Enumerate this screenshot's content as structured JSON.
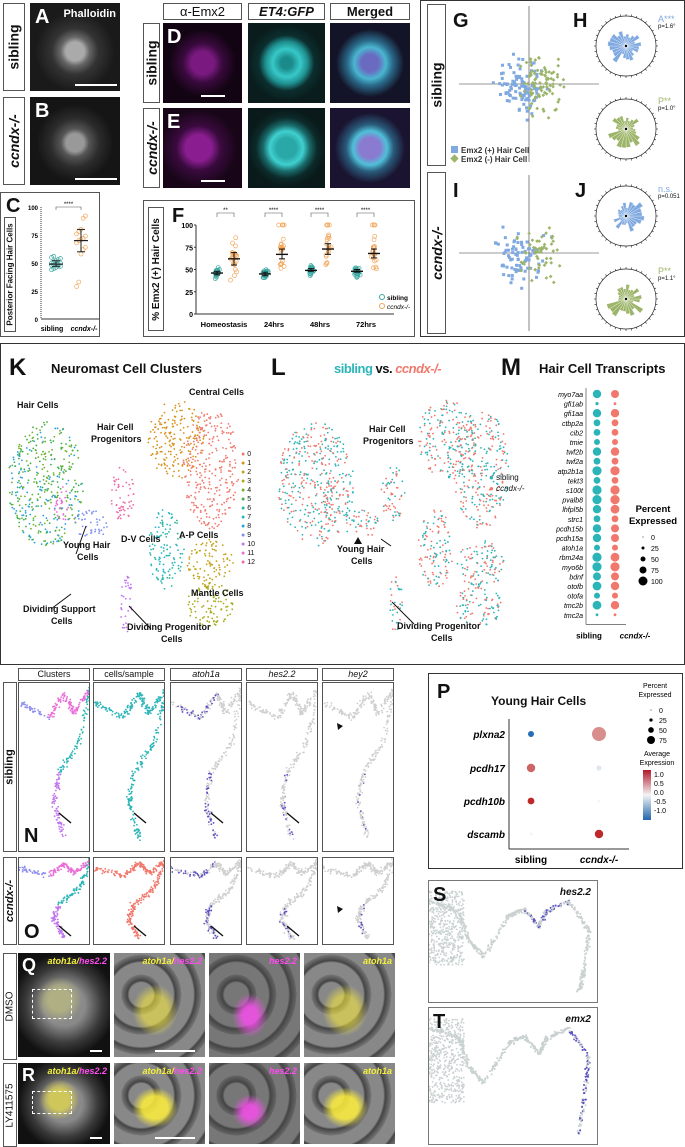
{
  "panels": {
    "A": {
      "letter": "A",
      "stain": "Phalloidin"
    },
    "B": {
      "letter": "B"
    },
    "C": {
      "letter": "C"
    },
    "D": {
      "letter": "D"
    },
    "E": {
      "letter": "E"
    },
    "F": {
      "letter": "F"
    },
    "G": {
      "letter": "G"
    },
    "H": {
      "letter": "H"
    },
    "I": {
      "letter": "I"
    },
    "J": {
      "letter": "J"
    },
    "K": {
      "letter": "K",
      "title": "Neuromast Cell Clusters"
    },
    "L": {
      "letter": "L",
      "title_sibling": "sibling",
      "title_vs": " vs. ",
      "title_mutant": "ccndx-/-"
    },
    "M": {
      "letter": "M",
      "title": "Hair Cell Transcripts"
    },
    "N": {
      "letter": "N"
    },
    "O": {
      "letter": "O"
    },
    "P": {
      "letter": "P",
      "title": "Young Hair Cells"
    },
    "Q": {
      "letter": "Q"
    },
    "R": {
      "letter": "R"
    },
    "S": {
      "letter": "S",
      "gene": "hes2.2"
    },
    "T": {
      "letter": "T",
      "gene": "emx2"
    }
  },
  "row_labels": {
    "sibling": "sibling",
    "mutant": "ccndx-/-",
    "dmso": "DMSO",
    "ly": "LY411575"
  },
  "de_headers": [
    "α-Emx2",
    "ET4:GFP",
    "Merged"
  ],
  "no_headers": [
    "Clusters",
    "cells/sample",
    "atoh1a",
    "hes2.2",
    "hey2"
  ],
  "qr_labels": {
    "merge": "atoh1a",
    "slash": "/",
    "hes": "hes2.2",
    "atoh": "atoh1a"
  },
  "gj": {
    "legend_pos": "Emx2 (+) Hair Cell",
    "legend_neg": "Emx2 (-) Hair Cell",
    "H_top_stat": "A***",
    "H_top_p": "p=1.6°",
    "H_bot_stat": "P**",
    "H_bot_p": "p=1.0°",
    "J_top_stat": "n.s.",
    "J_top_p": "p=0.051",
    "J_bot_stat": "P**",
    "J_bot_p": "p=1.1°"
  },
  "K_labels": {
    "hair_cells": "Hair Cells",
    "central_cells": "Central Cells",
    "hcp1": "Hair Cell",
    "hcp2": "Progenitors",
    "young1": "Young Hair",
    "young2": "Cells",
    "dv": "D-V Cells",
    "ap": "A-P Cells",
    "mantle": "Mantle Cells",
    "dsc1": "Dividing Support",
    "dsc2": "Cells",
    "dpc1": "Dividing Progenitor",
    "dpc2": "Cells",
    "clusters": [
      "0",
      "1",
      "2",
      "3",
      "4",
      "5",
      "6",
      "7",
      "8",
      "9",
      "10",
      "11",
      "12"
    ]
  },
  "L_legend": {
    "sibling": "sibling",
    "mutant": "ccndx-/-"
  },
  "colors": {
    "sibling": "#2bb5b8",
    "mutant": "#f0786c",
    "orange": "#f2a65a",
    "teal": "#3aa6a0",
    "emx_pos": "#7fa9e0",
    "emx_neg": "#9db56a",
    "umap_grey": "#c9d1d1",
    "umap_expr": "#5b4fc4",
    "clusters": [
      "#f07a6f",
      "#d8921d",
      "#c4a21b",
      "#a8ad1a",
      "#6fb32a",
      "#3fb04a",
      "#2fb59b",
      "#27b7c8",
      "#2aa2e0",
      "#7f8ff0",
      "#c275ef",
      "#ea6fd8",
      "#f06ca8"
    ]
  },
  "chart_data": [
    {
      "id": "C",
      "type": "scatter",
      "ylabel": "Posterior Facing Hair Cells",
      "categories": [
        "sibling",
        "ccndx-/-"
      ],
      "yticks": [
        0,
        25,
        50,
        75,
        100
      ],
      "ylim": [
        0,
        100
      ],
      "series": [
        {
          "name": "sibling",
          "mean": 49,
          "err": [
            47,
            52
          ],
          "points": [
            44,
            45,
            46,
            47,
            47,
            48,
            48,
            49,
            49,
            50,
            50,
            51,
            52,
            53,
            54,
            55,
            56
          ]
        },
        {
          "name": "ccndx-/-",
          "mean": 70,
          "err": [
            60,
            80
          ],
          "points": [
            29,
            33,
            58,
            62,
            64,
            68,
            70,
            71,
            72,
            74,
            76,
            78,
            80,
            90,
            92
          ]
        }
      ],
      "significance": "****"
    },
    {
      "id": "F",
      "type": "scatter",
      "ylabel": "% Emx2 (+) Hair Cells",
      "categories": [
        "Homeostasis",
        "24hrs",
        "48hrs",
        "72hrs"
      ],
      "yticks": [
        0,
        25,
        50,
        75,
        100
      ],
      "ylim": [
        0,
        100
      ],
      "series": [
        {
          "name": "sibling",
          "means": [
            46,
            45,
            49,
            48
          ],
          "err": [
            [
              44,
              48
            ],
            [
              43,
              47
            ],
            [
              48,
              51
            ],
            [
              47,
              50
            ]
          ]
        },
        {
          "name": "ccndx-/-",
          "means": [
            62,
            67,
            73,
            68
          ],
          "err": [
            [
              55,
              69
            ],
            [
              62,
              73
            ],
            [
              67,
              79
            ],
            [
              63,
              73
            ]
          ]
        }
      ],
      "significance": [
        "**",
        "****",
        "****",
        "****"
      ],
      "legend": "bottom-right"
    },
    {
      "id": "M",
      "type": "dot",
      "title": "Hair Cell Transcripts",
      "genes": [
        "myo7aa",
        "gfi1ab",
        "gfi1aa",
        "ctbp2a",
        "cib2",
        "tmie",
        "twf2b",
        "twf2a",
        "atp2b1a",
        "tekt3",
        "s100t",
        "pvalb8",
        "lhfpl5b",
        "strc1",
        "pcdh15b",
        "pcdh15a",
        "atoh1a",
        "rbm24a",
        "myo6b",
        "bdnf",
        "otofb",
        "otofa",
        "tmc2b",
        "tmc2a"
      ],
      "groups": [
        "sibling",
        "ccndx-/-"
      ],
      "percent_sibling": [
        85,
        20,
        85,
        65,
        65,
        55,
        85,
        65,
        95,
        65,
        95,
        95,
        85,
        65,
        85,
        85,
        55,
        95,
        95,
        80,
        90,
        55,
        90,
        15
      ],
      "percent_mutant": [
        80,
        15,
        85,
        65,
        65,
        55,
        85,
        65,
        95,
        65,
        95,
        95,
        90,
        65,
        80,
        80,
        55,
        90,
        95,
        80,
        85,
        55,
        85,
        15
      ],
      "legend_title": "Percent Expressed",
      "size_legend": [
        0,
        25,
        50,
        75,
        100
      ]
    },
    {
      "id": "P",
      "type": "dot",
      "title": "Young Hair Cells",
      "genes": [
        "plxna2",
        "pcdh17",
        "pcdh10b",
        "dscamb"
      ],
      "groups": [
        "sibling",
        "ccndx-/-"
      ],
      "percent_sibling": [
        25,
        40,
        30,
        8
      ],
      "percent_mutant": [
        75,
        20,
        5,
        40
      ],
      "avg_sibling": [
        -1.0,
        0.7,
        1.0,
        0.0
      ],
      "avg_mutant": [
        0.5,
        -0.1,
        0.0,
        1.0
      ],
      "size_legend_title": "Percent Expressed",
      "size_legend": [
        0,
        25,
        50,
        75
      ],
      "color_legend_title": "Average Expression",
      "color_legend": [
        "1.0",
        "0.5",
        "0.0",
        "-0.5",
        "-1.0"
      ]
    }
  ]
}
